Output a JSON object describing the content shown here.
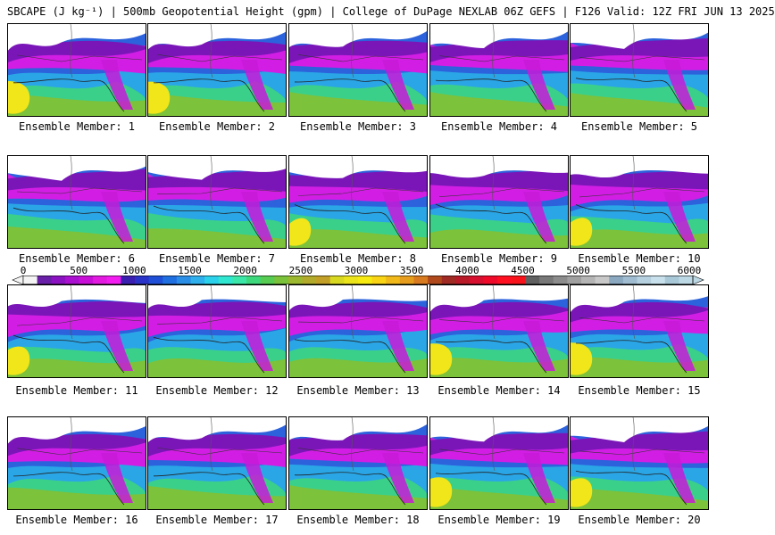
{
  "header": {
    "title": "SBCAPE (J kg⁻¹) | 500mb Geopotential Height (gpm) | College of DuPage NEXLAB 06Z GEFS | F126 Valid: 12Z FRI JUN 13 2025"
  },
  "colorbar": {
    "ticks": [
      "0",
      "500",
      "1000",
      "1500",
      "2000",
      "2500",
      "3000",
      "3500",
      "4000",
      "4500",
      "5000",
      "5500",
      "6000"
    ],
    "colors": [
      "#f4f4f4",
      "#6a1fa8",
      "#8a12c0",
      "#a910cf",
      "#c80fd8",
      "#e21ae0",
      "#f21cf0",
      "#3b1fb0",
      "#2a33c8",
      "#1e4fd6",
      "#1f6fe0",
      "#2a8de6",
      "#2fb0ec",
      "#2bd0ea",
      "#2fe6d0",
      "#3ae6a8",
      "#3ed87c",
      "#56cc52",
      "#7ac23a",
      "#9cb82e",
      "#b2aa2a",
      "#c2a028",
      "#d8d820",
      "#ece41a",
      "#f6ea10",
      "#f8d414",
      "#f0b818",
      "#e69c1c",
      "#d87a20",
      "#b04a1c",
      "#a02a24",
      "#b81a28",
      "#d81030",
      "#f00a2a",
      "#ff1020",
      "#f8121a",
      "#606060",
      "#787878",
      "#8c8c8c",
      "#a0a0a0",
      "#b4b4b4",
      "#c8c8c8",
      "#8aa8c0",
      "#a0bcd0",
      "#b6d0e0",
      "#c8e0ec",
      "#a8c8d8",
      "#bcd8e4"
    ]
  },
  "members": [
    {
      "label": "Ensemble Member: 1",
      "yellow": true
    },
    {
      "label": "Ensemble Member: 2",
      "yellow": true
    },
    {
      "label": "Ensemble Member: 3",
      "yellow": false
    },
    {
      "label": "Ensemble Member: 4",
      "yellow": false
    },
    {
      "label": "Ensemble Member: 5",
      "yellow": false
    },
    {
      "label": "Ensemble Member: 6",
      "yellow": false
    },
    {
      "label": "Ensemble Member: 7",
      "yellow": false
    },
    {
      "label": "Ensemble Member: 8",
      "yellow": true
    },
    {
      "label": "Ensemble Member: 9",
      "yellow": false
    },
    {
      "label": "Ensemble Member: 10",
      "yellow": true
    },
    {
      "label": "Ensemble Member: 11",
      "yellow": true
    },
    {
      "label": "Ensemble Member: 12",
      "yellow": false
    },
    {
      "label": "Ensemble Member: 13",
      "yellow": false
    },
    {
      "label": "Ensemble Member: 14",
      "yellow": true
    },
    {
      "label": "Ensemble Member: 15",
      "yellow": true
    },
    {
      "label": "Ensemble Member: 16",
      "yellow": false
    },
    {
      "label": "Ensemble Member: 17",
      "yellow": false
    },
    {
      "label": "Ensemble Member: 18",
      "yellow": false
    },
    {
      "label": "Ensemble Member: 19",
      "yellow": true
    },
    {
      "label": "Ensemble Member: 20",
      "yellow": true
    }
  ]
}
